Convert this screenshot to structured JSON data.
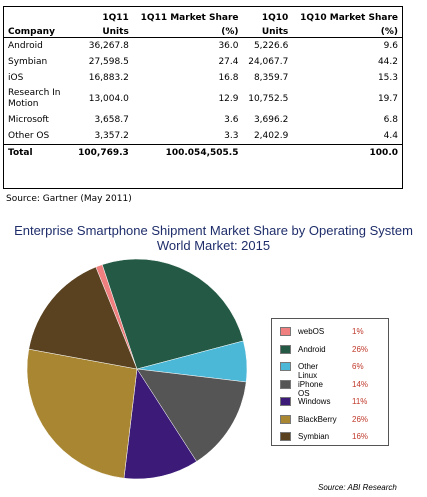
{
  "table": {
    "header_row1": [
      "",
      "1Q11",
      "1Q11 Market Share",
      "1Q10",
      "1Q10 Market Share"
    ],
    "header_row2": [
      "Company",
      "Units",
      "(%)",
      "Units",
      "(%)"
    ],
    "rows": [
      {
        "company": "Android",
        "q11_units": "36,267.8",
        "q11_share": "36.0",
        "q10_units": "5,226.6",
        "q10_share": "9.6"
      },
      {
        "company": "Symbian",
        "q11_units": "27,598.5",
        "q11_share": "27.4",
        "q10_units": "24,067.7",
        "q10_share": "44.2"
      },
      {
        "company": "iOS",
        "q11_units": "16,883.2",
        "q11_share": "16.8",
        "q10_units": "8,359.7",
        "q10_share": "15.3"
      },
      {
        "company": "Research In Motion",
        "q11_units": "13,004.0",
        "q11_share": "12.9",
        "q10_units": "10,752.5",
        "q10_share": "19.7"
      },
      {
        "company": "Microsoft",
        "q11_units": "3,658.7",
        "q11_share": "3.6",
        "q10_units": "3,696.2",
        "q10_share": "6.8"
      },
      {
        "company": "Other OS",
        "q11_units": "3,357.2",
        "q11_share": "3.3",
        "q10_units": "2,402.9",
        "q10_share": "4.4"
      }
    ],
    "total": {
      "company": "Total",
      "q11_units": "100,769.3",
      "q11_share": "100.054,505.5",
      "q10_units": "",
      "q10_share": "100.0"
    },
    "source": "Source: Gartner (May 2011)"
  },
  "chart_data": {
    "type": "pie",
    "title": "Enterprise Smartphone Shipment Market Share by Operating System",
    "subtitle": "World Market: 2015",
    "legend_placement": "right",
    "slices": [
      {
        "name": "webOS",
        "label": "1%",
        "value": 1,
        "color": "#f08080"
      },
      {
        "name": "Android",
        "label": "26%",
        "value": 26,
        "color": "#245a45"
      },
      {
        "name": "Other Linux",
        "label": "6%",
        "value": 6,
        "color": "#4cb8d8"
      },
      {
        "name": "iPhone OS",
        "label": "14%",
        "value": 14,
        "color": "#555555"
      },
      {
        "name": "Windows",
        "label": "11%",
        "value": 11,
        "color": "#3b1a78"
      },
      {
        "name": "BlackBerry",
        "label": "26%",
        "value": 26,
        "color": "#a98632"
      },
      {
        "name": "Symbian",
        "label": "16%",
        "value": 16,
        "color": "#5a4220"
      }
    ],
    "source": "Source: ABI Research"
  }
}
